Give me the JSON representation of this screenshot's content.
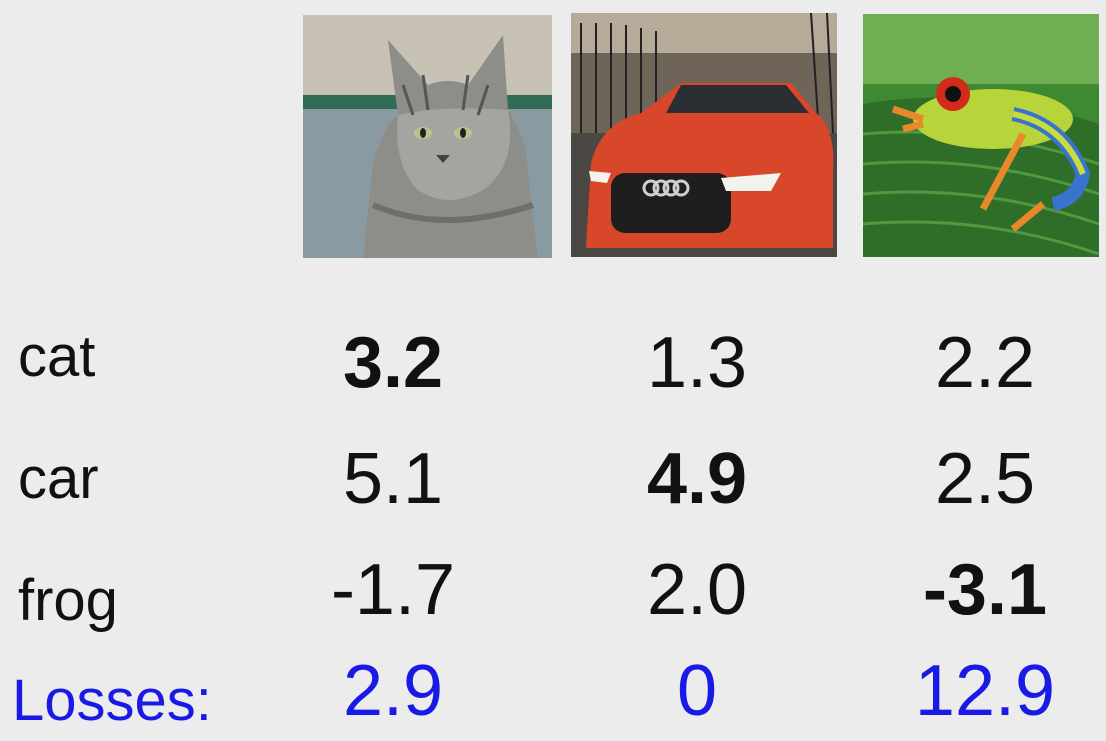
{
  "images": [
    {
      "name": "cat"
    },
    {
      "name": "car"
    },
    {
      "name": "frog"
    }
  ],
  "rows": {
    "cat": {
      "label": "cat",
      "scores": [
        "3.2",
        "1.3",
        "2.2"
      ]
    },
    "car": {
      "label": "car",
      "scores": [
        "5.1",
        "4.9",
        "2.5"
      ]
    },
    "frog": {
      "label": "frog",
      "scores": [
        "-1.7",
        "2.0",
        "-3.1"
      ]
    }
  },
  "losses": {
    "label": "Losses:",
    "values": [
      "2.9",
      "0",
      "12.9"
    ]
  },
  "colors": {
    "background": "#ececec",
    "text": "#111111",
    "loss": "#1a1ae6"
  }
}
